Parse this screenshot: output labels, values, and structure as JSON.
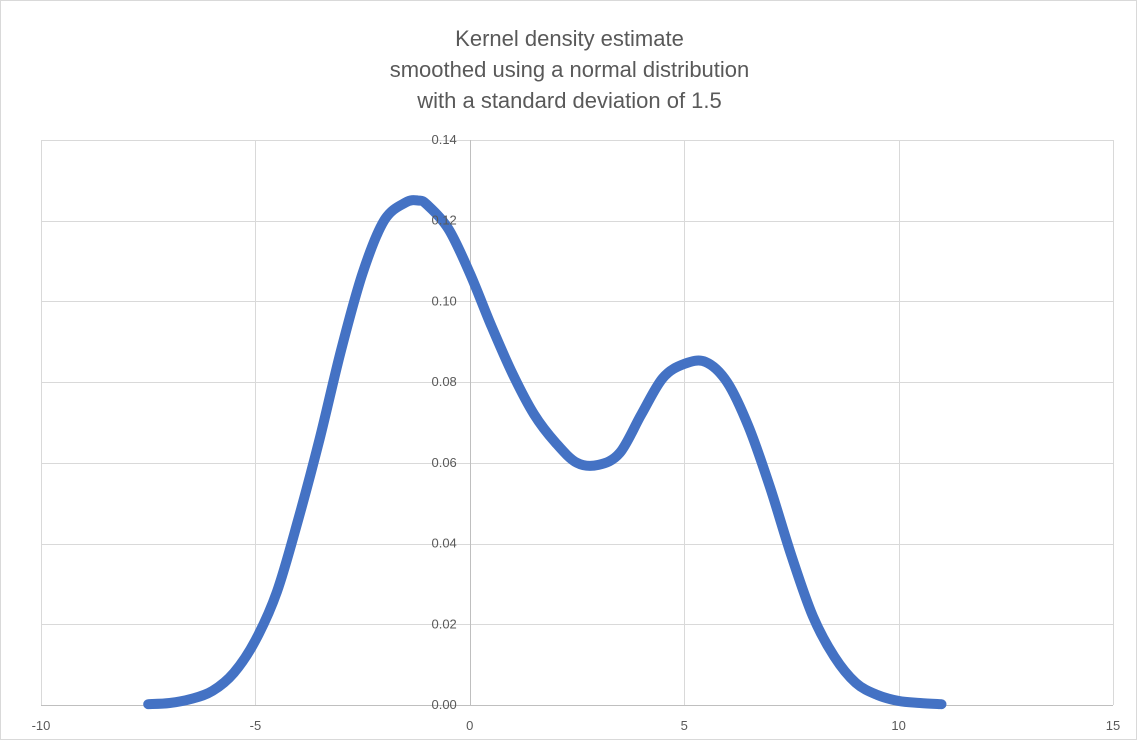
{
  "chart_data": {
    "type": "line",
    "title_lines": [
      "Kernel density estimate",
      "smoothed using a normal distribution",
      "with a standard deviation of 1.5"
    ],
    "xlabel": "",
    "ylabel": "",
    "xlim": [
      -10,
      15
    ],
    "ylim": [
      0,
      0.14
    ],
    "x_ticks": [
      -10,
      -5,
      0,
      5,
      10,
      15
    ],
    "x_tick_labels": [
      "-10",
      "-5",
      "0",
      "5",
      "10",
      "15"
    ],
    "y_ticks": [
      0,
      0.02,
      0.04,
      0.06,
      0.08,
      0.1,
      0.12,
      0.14
    ],
    "y_tick_labels": [
      "0.00",
      "0.02",
      "0.04",
      "0.06",
      "0.08",
      "0.10",
      "0.12",
      "0.14"
    ],
    "grid": true,
    "legend": "none",
    "series": [
      {
        "color": "#4472c4",
        "x": [
          -7.5,
          -7,
          -6.5,
          -6,
          -5.5,
          -5,
          -4.5,
          -4,
          -3.5,
          -3,
          -2.5,
          -2,
          -1.5,
          -1.2,
          -1,
          -0.5,
          0,
          0.5,
          1,
          1.5,
          2,
          2.5,
          3,
          3.5,
          4,
          4.5,
          5,
          5.5,
          6,
          6.5,
          7,
          7.5,
          8,
          8.5,
          9,
          9.5,
          10,
          10.5,
          11
        ],
        "y": [
          0.0002,
          0.0005,
          0.0015,
          0.0035,
          0.008,
          0.016,
          0.028,
          0.046,
          0.066,
          0.088,
          0.107,
          0.12,
          0.1245,
          0.125,
          0.124,
          0.118,
          0.107,
          0.094,
          0.082,
          0.072,
          0.065,
          0.06,
          0.0595,
          0.0625,
          0.072,
          0.081,
          0.0845,
          0.085,
          0.08,
          0.069,
          0.054,
          0.037,
          0.022,
          0.012,
          0.0055,
          0.0025,
          0.001,
          0.0005,
          0.0002
        ]
      }
    ]
  }
}
